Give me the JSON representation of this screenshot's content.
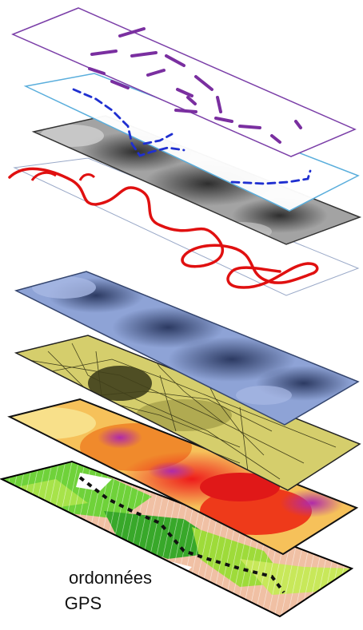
{
  "caption": {
    "line1": "ordonnées",
    "line2": "GPS"
  },
  "layers": [
    {
      "name": "purple-trajectory-layer",
      "fill": "#ffffff",
      "border": "#7b3fa8",
      "trace_color": "#7a2fa0"
    },
    {
      "name": "blue-trajectory-layer",
      "fill": "#ffffff",
      "border": "#5aaedc",
      "trace_color": "#1f2fd0"
    },
    {
      "name": "grayscale-raster-layer",
      "fill": "#8a8a8a",
      "border": "#333333"
    },
    {
      "name": "red-trajectory-layer",
      "fill": "#ffffff",
      "border": "#9aa9c8",
      "trace_color": "#e01010"
    },
    {
      "name": "blue-raster-layer",
      "fill": "#7f95c8",
      "border": "#34456e"
    },
    {
      "name": "aerial-photo-layer",
      "fill": "#c9c258",
      "border": "#222222"
    },
    {
      "name": "heatmap-layer",
      "fill": "#f29a3a",
      "border": "#111111"
    },
    {
      "name": "land-use-layer",
      "fill": "#f0c0a4",
      "border": "#000000",
      "trace_color": "#111111"
    }
  ]
}
